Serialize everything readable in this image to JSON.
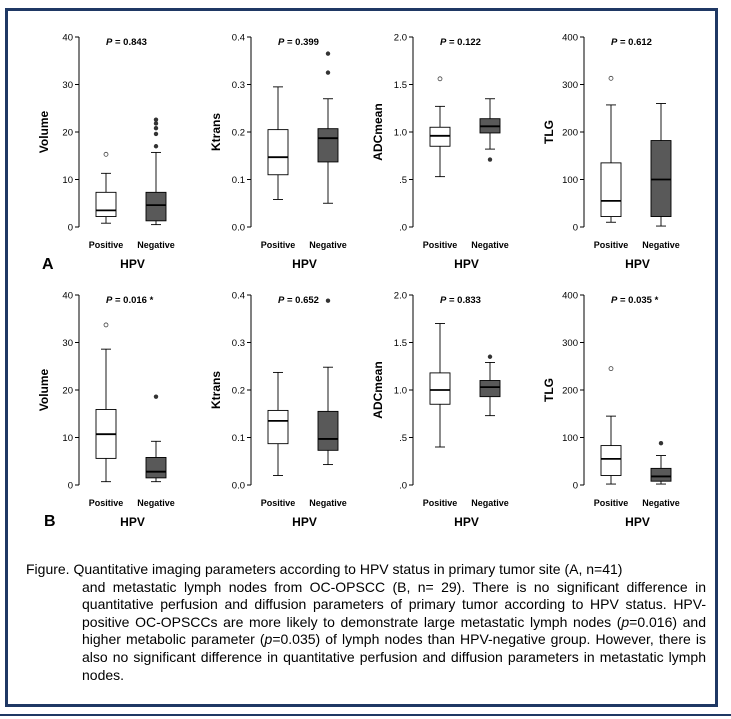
{
  "colors": {
    "frame": "#1f3864",
    "positive_fill": "#ffffff",
    "negative_fill": "#595959",
    "stroke": "#000000"
  },
  "rows": [
    {
      "letter": "A"
    },
    {
      "letter": "B"
    }
  ],
  "caption": {
    "first_line": "Figure. Quantitative imaging parameters according to HPV status in primary tumor site (A, n=41)",
    "rest": [
      {
        "t": "and metastatic lymph nodes from OC-OPSCC (B, n= 29). There is no significant difference in quantitative perfusion and diffusion parameters of primary tumor according to HPV status. HPV-positive OC-OPSCCs are more likely to demonstrate large metastatic lymph nodes ("
      },
      {
        "t": "p",
        "i": true
      },
      {
        "t": "=0.016) and higher metabolic parameter ("
      },
      {
        "t": "p",
        "i": true
      },
      {
        "t": "=0.035) of lymph nodes than HPV-negative group. However, there is also no significant difference in quantitative perfusion and diffusion parameters in metastatic lymph nodes."
      }
    ]
  },
  "chart_data": [
    {
      "type": "box",
      "panel": "A",
      "ylabel": "Volume",
      "xlabel": "HPV",
      "pvalue": "P = 0.843",
      "ylim": [
        0,
        40
      ],
      "yticks": [
        "0",
        "10",
        "20",
        "30",
        "40"
      ],
      "ytick_values": [
        0,
        10,
        20,
        30,
        40
      ],
      "categories": [
        "Positive",
        "Negative"
      ],
      "boxes": [
        {
          "whisker_low": 0.8,
          "q1": 2.2,
          "median": 3.5,
          "q3": 7.3,
          "whisker_high": 11.3,
          "outliers": [
            15.3
          ],
          "outlier_style": "open",
          "fill": "white"
        },
        {
          "whisker_low": 0.5,
          "q1": 1.3,
          "median": 4.6,
          "q3": 7.3,
          "whisker_high": 15.7,
          "outliers": [
            17.0,
            19.6,
            20.8,
            21.8,
            22.6
          ],
          "outlier_style": "filled",
          "fill": "gray"
        }
      ]
    },
    {
      "type": "box",
      "panel": "A",
      "ylabel": "Ktrans",
      "xlabel": "HPV",
      "pvalue": "P = 0.399",
      "ylim": [
        0,
        0.4
      ],
      "yticks": [
        "0.0",
        "0.1",
        "0.2",
        "0.3",
        "0.4"
      ],
      "ytick_values": [
        0,
        0.1,
        0.2,
        0.3,
        0.4
      ],
      "categories": [
        "Positive",
        "Negative"
      ],
      "boxes": [
        {
          "whisker_low": 0.058,
          "q1": 0.11,
          "median": 0.147,
          "q3": 0.205,
          "whisker_high": 0.295,
          "outliers": [],
          "outlier_style": "open",
          "fill": "white"
        },
        {
          "whisker_low": 0.05,
          "q1": 0.137,
          "median": 0.187,
          "q3": 0.207,
          "whisker_high": 0.27,
          "outliers": [
            0.325,
            0.365
          ],
          "outlier_style": "filled",
          "fill": "gray"
        }
      ]
    },
    {
      "type": "box",
      "panel": "A",
      "ylabel": "ADCmean",
      "xlabel": "HPV",
      "pvalue": "P = 0.122",
      "ylim": [
        0,
        2.0
      ],
      "yticks": [
        ".0",
        ".5",
        "1.0",
        "1.5",
        "2.0"
      ],
      "ytick_values": [
        0,
        0.5,
        1.0,
        1.5,
        2.0
      ],
      "categories": [
        "Positive",
        "Negative"
      ],
      "boxes": [
        {
          "whisker_low": 0.53,
          "q1": 0.85,
          "median": 0.96,
          "q3": 1.05,
          "whisker_high": 1.27,
          "outliers": [
            1.56
          ],
          "outlier_style": "open",
          "fill": "white"
        },
        {
          "whisker_low": 0.82,
          "q1": 0.99,
          "median": 1.06,
          "q3": 1.14,
          "whisker_high": 1.35,
          "outliers": [
            0.71
          ],
          "outlier_style": "filled",
          "fill": "gray"
        }
      ]
    },
    {
      "type": "box",
      "panel": "A",
      "ylabel": "TLG",
      "xlabel": "HPV",
      "pvalue": "P = 0.612",
      "ylim": [
        0,
        400
      ],
      "yticks": [
        "0",
        "100",
        "200",
        "300",
        "400"
      ],
      "ytick_values": [
        0,
        100,
        200,
        300,
        400
      ],
      "categories": [
        "Positive",
        "Negative"
      ],
      "boxes": [
        {
          "whisker_low": 10,
          "q1": 22,
          "median": 55,
          "q3": 135,
          "whisker_high": 257,
          "outliers": [
            313
          ],
          "outlier_style": "open",
          "fill": "white"
        },
        {
          "whisker_low": 2,
          "q1": 22,
          "median": 100,
          "q3": 182,
          "whisker_high": 260,
          "outliers": [],
          "outlier_style": "filled",
          "fill": "gray"
        }
      ]
    },
    {
      "type": "box",
      "panel": "B",
      "ylabel": "Volume",
      "xlabel": "HPV",
      "pvalue": "P = 0.016 *",
      "ylim": [
        0,
        40
      ],
      "yticks": [
        "0",
        "10",
        "20",
        "30",
        "40"
      ],
      "ytick_values": [
        0,
        10,
        20,
        30,
        40
      ],
      "categories": [
        "Positive",
        "Negative"
      ],
      "boxes": [
        {
          "whisker_low": 0.7,
          "q1": 5.6,
          "median": 10.7,
          "q3": 15.9,
          "whisker_high": 28.6,
          "outliers": [
            33.7
          ],
          "outlier_style": "open",
          "fill": "white"
        },
        {
          "whisker_low": 0.7,
          "q1": 1.5,
          "median": 2.8,
          "q3": 5.8,
          "whisker_high": 9.2,
          "outliers": [
            18.6
          ],
          "outlier_style": "filled",
          "fill": "gray"
        }
      ]
    },
    {
      "type": "box",
      "panel": "B",
      "ylabel": "Ktrans",
      "xlabel": "HPV",
      "pvalue": "P = 0.652",
      "ylim": [
        0,
        0.4
      ],
      "yticks": [
        "0.0",
        "0.1",
        "0.2",
        "0.3",
        "0.4"
      ],
      "ytick_values": [
        0,
        0.1,
        0.2,
        0.3,
        0.4
      ],
      "categories": [
        "Positive",
        "Negative"
      ],
      "boxes": [
        {
          "whisker_low": 0.02,
          "q1": 0.087,
          "median": 0.135,
          "q3": 0.157,
          "whisker_high": 0.237,
          "outliers": [],
          "outlier_style": "open",
          "fill": "white"
        },
        {
          "whisker_low": 0.043,
          "q1": 0.073,
          "median": 0.097,
          "q3": 0.155,
          "whisker_high": 0.248,
          "outliers": [
            0.388
          ],
          "outlier_style": "filled",
          "fill": "gray"
        }
      ]
    },
    {
      "type": "box",
      "panel": "B",
      "ylabel": "ADCmean",
      "xlabel": "HPV",
      "pvalue": "P = 0.833",
      "ylim": [
        0,
        2.0
      ],
      "yticks": [
        ".0",
        ".5",
        "1.0",
        "1.5",
        "2.0"
      ],
      "ytick_values": [
        0,
        0.5,
        1.0,
        1.5,
        2.0
      ],
      "categories": [
        "Positive",
        "Negative"
      ],
      "boxes": [
        {
          "whisker_low": 0.4,
          "q1": 0.85,
          "median": 1.0,
          "q3": 1.18,
          "whisker_high": 1.7,
          "outliers": [],
          "outlier_style": "open",
          "fill": "white"
        },
        {
          "whisker_low": 0.73,
          "q1": 0.93,
          "median": 1.03,
          "q3": 1.1,
          "whisker_high": 1.29,
          "outliers": [
            1.35
          ],
          "outlier_style": "filled",
          "fill": "gray"
        }
      ]
    },
    {
      "type": "box",
      "panel": "B",
      "ylabel": "TLG",
      "xlabel": "HPV",
      "pvalue": "P = 0.035 *",
      "ylim": [
        0,
        400
      ],
      "yticks": [
        "0",
        "100",
        "200",
        "300",
        "400"
      ],
      "ytick_values": [
        0,
        100,
        200,
        300,
        400
      ],
      "categories": [
        "Positive",
        "Negative"
      ],
      "boxes": [
        {
          "whisker_low": 2,
          "q1": 20,
          "median": 55,
          "q3": 83,
          "whisker_high": 145,
          "outliers": [
            245
          ],
          "outlier_style": "open",
          "fill": "white"
        },
        {
          "whisker_low": 2,
          "q1": 8,
          "median": 18,
          "q3": 35,
          "whisker_high": 62,
          "outliers": [
            88
          ],
          "outlier_style": "filled",
          "fill": "gray"
        }
      ]
    }
  ]
}
